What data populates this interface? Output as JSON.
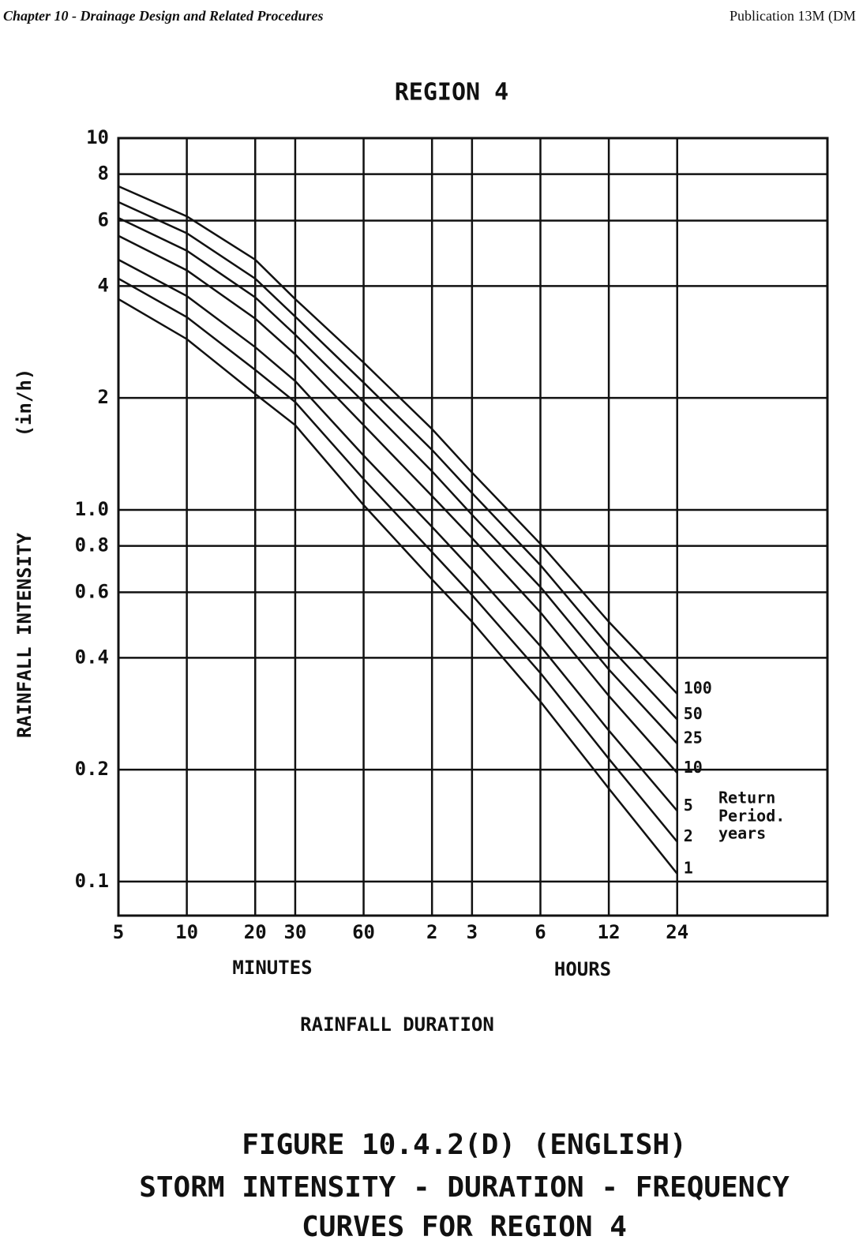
{
  "header": {
    "left": "Chapter 10 - Drainage Design and Related Procedures",
    "right": "Publication 13M (DM"
  },
  "chart_data": {
    "type": "line",
    "title": "REGION 4",
    "ylabel": "RAINFALL INTENSITY",
    "yunit": "(in/h)",
    "xlabel": "RAINFALL DURATION",
    "xgroups": [
      "MINUTES",
      "HOURS"
    ],
    "legend_title": [
      "Return",
      "Period.",
      "years"
    ],
    "log_x": true,
    "log_y": true,
    "grid": true,
    "xlim": [
      5,
      6600
    ],
    "ylim": [
      0.081,
      10
    ],
    "xticks": [
      5,
      10,
      20,
      30,
      60,
      {
        "value": 120,
        "label": "2"
      },
      {
        "value": 180,
        "label": "3"
      },
      {
        "value": 360,
        "label": "6"
      },
      {
        "value": 720,
        "label": "12"
      },
      {
        "value": 1440,
        "label": "24"
      }
    ],
    "yticks": [
      10,
      8,
      6,
      4,
      2,
      {
        "value": 1,
        "label": "1.0"
      },
      0.8,
      0.6,
      0.4,
      0.2,
      0.1
    ],
    "x": [
      5,
      10,
      20,
      30,
      60,
      120,
      180,
      360,
      720,
      1440
    ],
    "series": [
      {
        "name": "100",
        "color": "#111111",
        "values": [
          7.42,
          6.16,
          4.71,
          3.69,
          2.49,
          1.65,
          1.26,
          0.81,
          0.5,
          0.32
        ]
      },
      {
        "name": "50",
        "color": "#111111",
        "values": [
          6.73,
          5.55,
          4.19,
          3.31,
          2.2,
          1.45,
          1.11,
          0.71,
          0.43,
          0.273
        ]
      },
      {
        "name": "25",
        "color": "#111111",
        "values": [
          6.1,
          4.98,
          3.73,
          2.96,
          1.95,
          1.27,
          0.97,
          0.62,
          0.372,
          0.235
        ]
      },
      {
        "name": "10",
        "color": "#111111",
        "values": [
          5.46,
          4.41,
          3.27,
          2.62,
          1.69,
          1.09,
          0.84,
          0.53,
          0.316,
          0.196
        ]
      },
      {
        "name": "5",
        "color": "#111111",
        "values": [
          4.71,
          3.76,
          2.74,
          2.22,
          1.4,
          0.9,
          0.69,
          0.43,
          0.255,
          0.155
        ]
      },
      {
        "name": "2",
        "color": "#111111",
        "values": [
          4.19,
          3.3,
          2.38,
          1.95,
          1.21,
          0.77,
          0.59,
          0.364,
          0.214,
          0.128
        ]
      },
      {
        "name": "1",
        "color": "#111111",
        "values": [
          3.69,
          2.88,
          2.05,
          1.69,
          1.03,
          0.65,
          0.5,
          0.305,
          0.178,
          0.105
        ]
      }
    ]
  },
  "caption": [
    "FIGURE 10.4.2(D) (ENGLISH)",
    "STORM INTENSITY - DURATION - FREQUENCY",
    "CURVES FOR REGION 4"
  ]
}
